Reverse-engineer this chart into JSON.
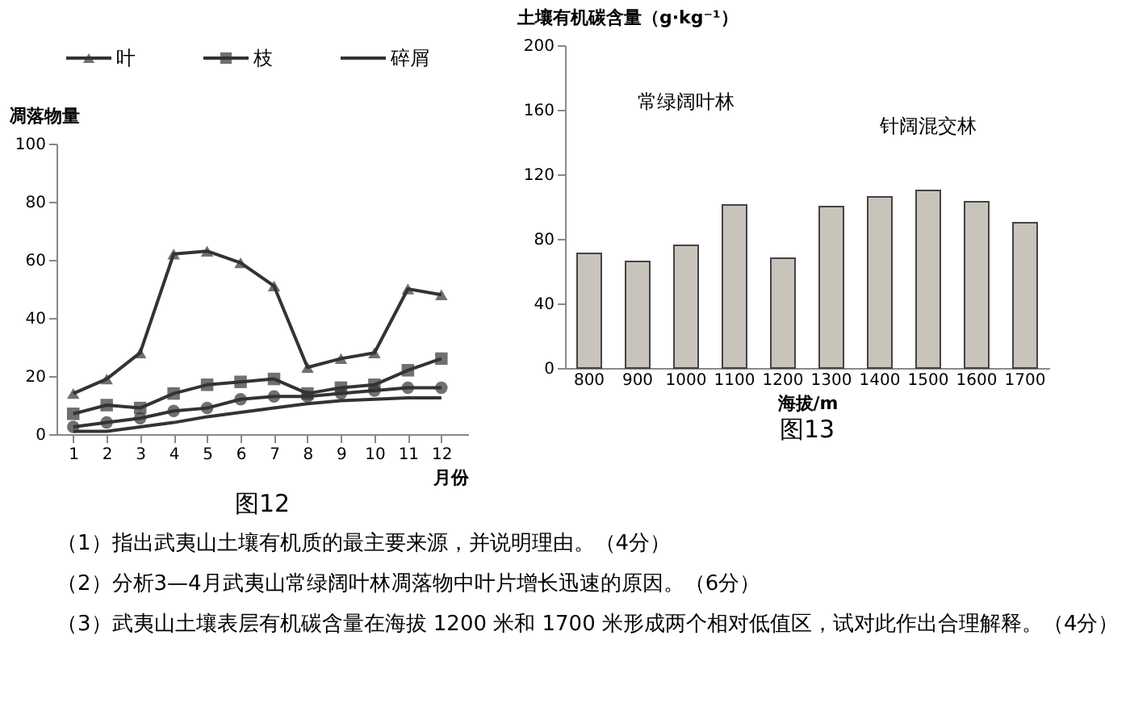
{
  "chart_data": [
    {
      "type": "line",
      "ylabel": "凋落物量",
      "xlabel": "月份",
      "title": "图12",
      "x": [
        1,
        2,
        3,
        4,
        5,
        6,
        7,
        8,
        9,
        10,
        11,
        12
      ],
      "xlim": [
        0.5,
        12.8
      ],
      "xticks": [
        1,
        2,
        3,
        4,
        5,
        6,
        7,
        8,
        9,
        10,
        11,
        12
      ],
      "ylim": [
        0,
        100
      ],
      "yticks": [
        0,
        20,
        40,
        60,
        80,
        100
      ],
      "grid": false,
      "legend": "top",
      "line_style": "solid",
      "series": [
        {
          "name": "叶",
          "color": "#333333",
          "marker": "triangle",
          "values": [
            14,
            19,
            28,
            62,
            63,
            59,
            51,
            23,
            26,
            28,
            50,
            48
          ]
        },
        {
          "name": "枝",
          "color": "#333333",
          "marker": "square",
          "values": [
            7,
            10,
            9,
            14,
            17,
            18,
            19,
            14,
            16,
            17,
            22,
            26
          ]
        },
        {
          "color": "#333333",
          "marker": "circle",
          "values": [
            2.5,
            4,
            5.5,
            8,
            9,
            12,
            13,
            13,
            14,
            15,
            16,
            16
          ]
        },
        {
          "name": "碎屑",
          "color": "#333333",
          "marker": "none",
          "values": [
            1,
            1,
            2.5,
            4,
            6,
            7.5,
            9,
            10.5,
            11.5,
            12,
            12.5,
            12.5
          ]
        }
      ],
      "annotations": [
        "（1）指出武夷山土壤有机质的最主要来源，并说明理由。（4分）",
        "（2）分析3—4月武夷山常绿阔叶林凋落物中叶片增长迅速的原因。（6分）",
        "（3）武夷山土壤表层有机碳含量在海拔 1200 米和 1700 米形成两个相对低值区，试对此作出合理解释。（4分）"
      ]
    },
    {
      "type": "bar",
      "ylabel": "土壤有机碳含量（g·kg⁻¹）",
      "xlabel": "海拔/m",
      "title": "图13",
      "categories": [
        "800",
        "900",
        "1000",
        "1100",
        "1200",
        "1300",
        "1400",
        "1500",
        "1600",
        "1700"
      ],
      "values": [
        71,
        66,
        76,
        101,
        68,
        100,
        106,
        110,
        103,
        90
      ],
      "color": "#c8c4bc",
      "ylim": [
        0,
        200
      ],
      "yticks": [
        0,
        40,
        80,
        120,
        160,
        200
      ],
      "grid": false,
      "annotations": [
        "常绿阔叶林",
        "针阔混交林"
      ]
    }
  ]
}
